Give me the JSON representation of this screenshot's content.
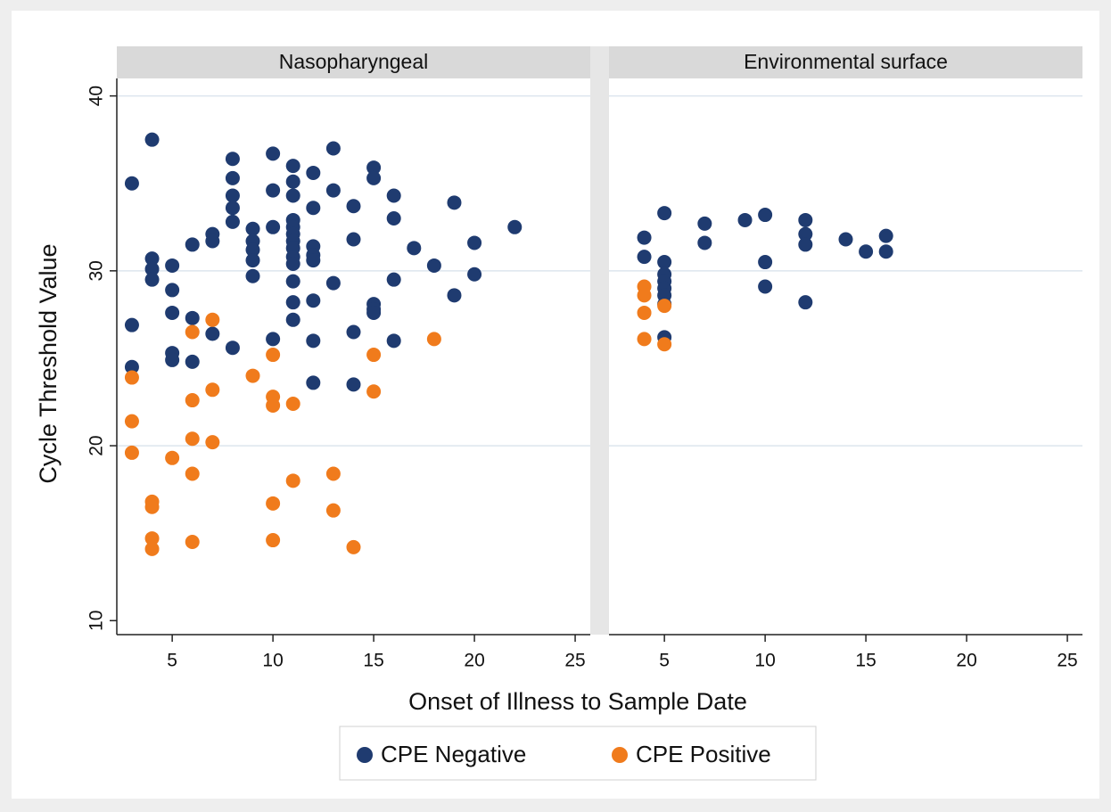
{
  "chart_data": [
    {
      "type": "scatter",
      "title": "Nasopharyngeal",
      "xlabel": "Onset of Illness to Sample Date",
      "ylabel": "Cycle Threshold Value",
      "xlim": [
        2.25,
        25.75
      ],
      "xticks": [
        5,
        10,
        15,
        20,
        25
      ],
      "ylim": [
        9.2,
        41
      ],
      "yticks": [
        10,
        20,
        30,
        40
      ],
      "grid": true,
      "legend": "bottom",
      "series": [
        {
          "name": "CPE Negative",
          "color": "#1f3b70",
          "x": [
            3,
            3,
            3,
            4,
            4,
            4,
            4,
            5,
            5,
            5,
            5,
            5,
            6,
            6,
            6,
            7,
            7,
            7,
            8,
            8,
            8,
            8,
            8,
            8,
            9,
            9,
            9,
            9,
            9,
            10,
            10,
            10,
            10,
            11,
            11,
            11,
            11,
            11,
            11,
            11,
            11,
            11,
            11,
            11,
            11,
            11,
            12,
            12,
            12,
            12,
            12,
            12,
            12,
            12,
            13,
            13,
            13,
            14,
            14,
            14,
            14,
            15,
            15,
            15,
            15,
            15,
            16,
            16,
            16,
            16,
            17,
            18,
            19,
            19,
            20,
            20,
            22
          ],
          "values": [
            35.0,
            26.9,
            24.5,
            37.5,
            30.7,
            30.1,
            29.5,
            30.3,
            28.9,
            27.6,
            25.3,
            24.9,
            31.5,
            27.3,
            24.8,
            32.1,
            31.7,
            26.4,
            36.4,
            35.3,
            34.3,
            33.6,
            32.8,
            25.6,
            32.4,
            31.7,
            31.2,
            30.6,
            29.7,
            36.7,
            34.6,
            32.5,
            26.1,
            36.0,
            35.1,
            34.3,
            32.9,
            32.5,
            32.1,
            31.7,
            31.3,
            30.8,
            30.4,
            29.4,
            28.2,
            27.2,
            35.6,
            33.6,
            31.4,
            30.9,
            30.6,
            28.3,
            26.0,
            23.6,
            37.0,
            34.6,
            29.3,
            33.7,
            31.8,
            26.5,
            23.5,
            35.9,
            35.3,
            28.1,
            27.8,
            27.6,
            34.3,
            33.0,
            29.5,
            26.0,
            31.3,
            30.3,
            33.9,
            28.6,
            31.6,
            29.8,
            32.5
          ]
        },
        {
          "name": "CPE Positive",
          "color": "#f07b1c",
          "x": [
            3,
            3,
            3,
            4,
            4,
            4,
            4,
            5,
            6,
            6,
            6,
            6,
            6,
            7,
            7,
            7,
            9,
            10,
            10,
            10,
            10,
            10,
            11,
            11,
            13,
            13,
            14,
            15,
            15,
            18
          ],
          "values": [
            23.9,
            21.4,
            19.6,
            16.8,
            16.5,
            14.7,
            14.1,
            19.3,
            26.5,
            22.6,
            20.4,
            18.4,
            14.5,
            27.2,
            23.2,
            20.2,
            24.0,
            25.2,
            22.8,
            22.3,
            16.7,
            14.6,
            22.4,
            18.0,
            18.4,
            16.3,
            14.2,
            25.2,
            23.1,
            26.1
          ]
        }
      ]
    },
    {
      "type": "scatter",
      "title": "Environmental surface",
      "xlim": [
        2.25,
        25.75
      ],
      "xticks": [
        5,
        10,
        15,
        20,
        25
      ],
      "ylim": [
        9.2,
        41
      ],
      "series": [
        {
          "color": "#1f3b70",
          "x": [
            4,
            4,
            5,
            5,
            5,
            5,
            5,
            5,
            5,
            5,
            7,
            7,
            9,
            10,
            10,
            10,
            12,
            12,
            12,
            12,
            14,
            15,
            16,
            16
          ],
          "values": [
            31.9,
            30.8,
            33.3,
            30.5,
            29.8,
            29.4,
            29.0,
            28.6,
            28.1,
            26.2,
            32.7,
            31.6,
            32.9,
            33.2,
            30.5,
            29.1,
            32.9,
            32.1,
            31.5,
            28.2,
            31.8,
            31.1,
            32.0,
            31.1
          ]
        },
        {
          "color": "#f07b1c",
          "x": [
            4,
            4,
            4,
            4,
            5,
            5
          ],
          "values": [
            29.1,
            28.6,
            27.6,
            26.1,
            28.0,
            25.8
          ]
        }
      ]
    }
  ]
}
